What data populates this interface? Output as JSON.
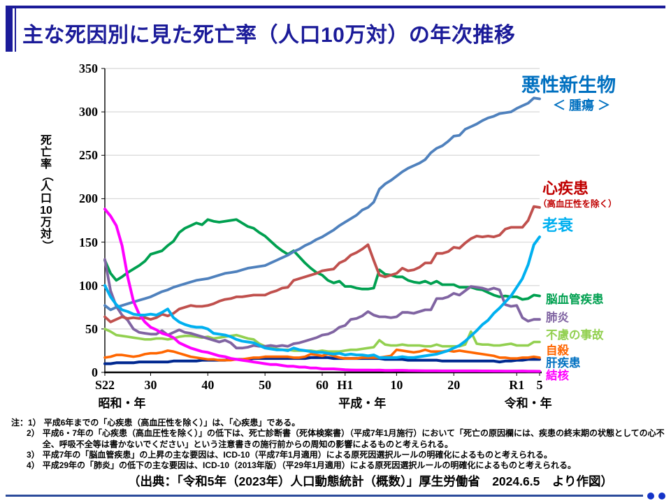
{
  "page": {
    "title": "主な死因別に見た死亡率（人口10万対）の年次推移",
    "source": "（出典：「令和5年（2023年）人口動態統計（概数）」厚生労働省　2024.6.5　より作図）"
  },
  "legend": {
    "cancer": {
      "label": "悪性新生物",
      "sub": "＜ 腫瘍 ＞",
      "color": "#0070C0"
    },
    "heart": {
      "label": "心疾患",
      "sub": "（高血圧性を除く）",
      "color": "#C00000"
    },
    "senility": {
      "label": "老衰",
      "color": "#00B0F0"
    },
    "cerebro": {
      "label": "脳血管疾患",
      "color": "#00A050"
    },
    "pneumonia": {
      "label": "肺炎",
      "color": "#8064A2"
    },
    "accident": {
      "label": "不慮の事故",
      "color": "#92D050"
    },
    "suicide": {
      "label": "自殺",
      "color": "#FF6600"
    },
    "liver": {
      "label": "肝疾患",
      "color": "#0070C0"
    },
    "tb": {
      "label": "結核",
      "color": "#FF00FF"
    }
  },
  "notes": {
    "items": [
      {
        "no": "注：1）",
        "text": "平成6年までの「心疾患（高血圧性を除く）」は、「心疾患」である。"
      },
      {
        "no": "2）",
        "text": "平成6・7年の「心疾患（高血圧性を除く）」の低下は、死亡診断書（死体検案書）（平成7年1月施行）において「死亡の原因欄には、疾患の終末期の状態としての心不全、呼吸不全等は書かないでください」という注意書きの施行前からの周知の影響によるものと考えられる。"
      },
      {
        "no": "3）",
        "text": "平成7年の「脳血管疾患」の上昇の主な要因は、ICD-10（平成7年1月適用）による原死因選択ルールの明確化によるものと考えられる。"
      },
      {
        "no": "4）",
        "text": "平成29年の「肺炎」の低下の主な要因は、ICD-10（2013年版）（平29年1月適用）による原死因選択ルールの明確化によるものと考えられる。"
      }
    ]
  },
  "footer": {
    "accent_color": "#2B4B9B",
    "dot_color": "#1433C8"
  },
  "chart_data": {
    "type": "line",
    "title": "主な死因別に見た死亡率（人口10万対）の年次推移",
    "ylabel": "死亡率（人口10万対）",
    "ylabel_tokens": [
      "死",
      "亡",
      "率",
      "（",
      "人",
      "口",
      "10",
      "万",
      "対",
      "）"
    ],
    "ylim": [
      0,
      350
    ],
    "y_ticks": [
      0,
      50,
      100,
      150,
      200,
      250,
      300,
      350
    ],
    "x_range": [
      1947,
      2023
    ],
    "x_ticks": [
      {
        "label": "S22",
        "year": 1947
      },
      {
        "label": "30",
        "year": 1955
      },
      {
        "label": "40",
        "year": 1965
      },
      {
        "label": "50",
        "year": 1975
      },
      {
        "label": "60",
        "year": 1985
      },
      {
        "label": "H1",
        "year": 1989
      },
      {
        "label": "10",
        "year": 1998
      },
      {
        "label": "20",
        "year": 2008
      },
      {
        "label": "R1",
        "year": 2019
      },
      {
        "label": "5",
        "year": 2023
      }
    ],
    "x_axis_eras": [
      {
        "label": "昭和・年",
        "year": 1950
      },
      {
        "label": "平成・年",
        "year": 1992
      },
      {
        "label": "令和・年",
        "year": 2021
      }
    ],
    "grid": "horizontal",
    "legend_position": "right",
    "series": [
      {
        "name": "悪性新生物＜腫瘍＞",
        "color": "#4F81BD",
        "width": 3.8,
        "values": [
          77,
          72,
          75,
          77,
          79,
          81,
          83,
          85,
          87,
          90,
          93,
          95,
          98,
          100,
          102,
          104,
          106,
          107,
          108,
          110,
          112,
          114,
          115,
          116,
          118,
          120,
          121,
          122,
          123,
          126,
          129,
          132,
          135,
          139,
          142,
          146,
          149,
          153,
          156,
          160,
          164,
          169,
          173,
          177,
          181,
          187,
          190,
          196,
          211,
          217,
          221,
          226,
          231,
          235,
          238,
          241,
          245,
          253,
          258,
          261,
          266,
          272,
          273,
          280,
          283,
          286,
          290,
          293,
          295,
          298,
          299,
          300,
          304,
          307,
          310,
          316,
          315
        ]
      },
      {
        "name": "心疾患（高血圧性を除く）",
        "color": "#C0504D",
        "width": 3.8,
        "values": [
          64,
          58,
          61,
          64,
          62,
          63,
          62,
          63,
          61,
          63,
          67,
          65,
          68,
          73,
          75,
          77,
          76,
          76,
          77,
          79,
          82,
          84,
          85,
          87,
          87,
          88,
          89,
          89,
          89,
          92,
          94,
          97,
          98,
          106,
          108,
          110,
          112,
          114,
          117,
          118,
          119,
          126,
          129,
          135,
          138,
          142,
          147,
          129,
          112,
          110,
          112,
          114,
          120,
          117,
          118,
          121,
          126,
          126,
          137,
          137,
          139,
          144,
          143,
          149,
          154,
          157,
          156,
          157,
          156,
          158,
          165,
          167,
          167,
          167,
          175,
          191,
          190
        ]
      },
      {
        "name": "老衰",
        "color": "#00B0F0",
        "width": 4,
        "values": [
          100,
          87,
          78,
          72,
          70,
          67,
          66,
          66,
          67,
          66,
          69,
          73,
          63,
          58,
          55,
          53,
          52,
          52,
          50,
          45,
          44,
          43,
          41,
          38,
          36,
          35,
          34,
          31,
          28,
          27,
          26,
          26,
          25,
          28,
          26,
          25,
          24,
          23,
          23,
          22,
          21,
          22,
          20,
          21,
          20,
          20,
          19,
          20,
          17,
          17,
          17,
          17,
          18,
          17,
          17,
          18,
          19,
          20,
          21,
          23,
          25,
          28,
          31,
          36,
          42,
          48,
          55,
          60,
          68,
          74,
          81,
          88,
          98,
          108,
          124,
          147,
          156
        ]
      },
      {
        "name": "脳血管疾患",
        "color": "#00A050",
        "width": 3.8,
        "values": [
          129,
          114,
          106,
          110,
          115,
          119,
          123,
          128,
          136,
          138,
          140,
          146,
          151,
          161,
          166,
          169,
          172,
          170,
          176,
          174,
          173,
          174,
          175,
          176,
          172,
          168,
          166,
          161,
          157,
          151,
          145,
          140,
          136,
          140,
          133,
          126,
          120,
          115,
          112,
          106,
          103,
          105,
          99,
          99,
          97,
          96,
          96,
          97,
          118,
          113,
          112,
          110,
          110,
          106,
          104,
          103,
          105,
          102,
          105,
          101,
          101,
          101,
          98,
          98,
          98,
          96,
          95,
          92,
          89,
          87,
          88,
          87,
          87,
          84,
          85,
          89,
          88
        ]
      },
      {
        "name": "肺炎",
        "color": "#8064A2",
        "width": 3.8,
        "values": [
          130,
          94,
          76,
          66,
          60,
          50,
          46,
          45,
          44,
          44,
          48,
          43,
          46,
          49,
          46,
          45,
          43,
          41,
          39,
          37,
          35,
          37,
          34,
          28,
          28,
          29,
          31,
          30,
          30,
          31,
          30,
          31,
          30,
          33,
          34,
          36,
          38,
          40,
          43,
          44,
          47,
          52,
          54,
          61,
          62,
          65,
          70,
          66,
          64,
          64,
          63,
          64,
          69,
          69,
          68,
          70,
          72,
          72,
          85,
          85,
          87,
          91,
          89,
          94,
          99,
          98,
          97,
          95,
          97,
          95,
          78,
          76,
          77,
          63,
          59,
          61,
          61
        ]
      },
      {
        "name": "不慮の事故",
        "color": "#92D050",
        "width": 3.6,
        "values": [
          50,
          47,
          43,
          42,
          41,
          40,
          39,
          38,
          38,
          39,
          39,
          38,
          39,
          41,
          42,
          42,
          41,
          40,
          41,
          39,
          40,
          41,
          42,
          43,
          41,
          39,
          38,
          33,
          30,
          28,
          27,
          26,
          26,
          25,
          25,
          25,
          25,
          24,
          25,
          24,
          24,
          24,
          25,
          26,
          26,
          27,
          28,
          29,
          37,
          32,
          31,
          31,
          32,
          31,
          31,
          31,
          30,
          30,
          32,
          30,
          30,
          30,
          30,
          32,
          47,
          33,
          32,
          32,
          31,
          31,
          32,
          33,
          31,
          31,
          31,
          35,
          35
        ]
      },
      {
        "name": "自殺",
        "color": "#FF6600",
        "width": 3.6,
        "values": [
          17,
          18,
          20,
          20,
          19,
          18,
          19,
          21,
          22,
          22,
          23,
          25,
          24,
          22,
          20,
          18,
          17,
          16,
          15,
          15,
          14,
          14,
          14,
          15,
          15,
          16,
          17,
          17,
          18,
          18,
          18,
          18,
          18,
          17,
          17,
          18,
          21,
          20,
          19,
          21,
          19,
          17,
          16,
          16,
          16,
          17,
          17,
          17,
          17,
          18,
          19,
          26,
          25,
          24,
          23,
          24,
          26,
          24,
          24,
          24,
          25,
          24,
          25,
          24,
          23,
          22,
          21,
          20,
          19,
          17,
          17,
          16,
          16,
          17,
          17,
          18,
          17
        ]
      },
      {
        "name": "肝疾患",
        "color": "#002890",
        "width": 4,
        "values": [
          10,
          10,
          11,
          11,
          11,
          11,
          12,
          12,
          12,
          12,
          12,
          12,
          13,
          13,
          13,
          13,
          13,
          14,
          14,
          14,
          14,
          14,
          15,
          15,
          15,
          15,
          16,
          16,
          16,
          16,
          16,
          16,
          16,
          16,
          16,
          16,
          17,
          17,
          17,
          17,
          16,
          16,
          16,
          16,
          16,
          16,
          16,
          16,
          16,
          15,
          15,
          15,
          15,
          14,
          14,
          14,
          14,
          14,
          14,
          13,
          13,
          13,
          13,
          13,
          13,
          13,
          13,
          13,
          13,
          12,
          13,
          13,
          14,
          14,
          15,
          15,
          15
        ]
      },
      {
        "name": "結核",
        "color": "#FF00FF",
        "width": 4,
        "values": [
          188,
          180,
          169,
          146,
          110,
          82,
          67,
          58,
          52,
          49,
          45,
          43,
          40,
          34,
          31,
          28,
          26,
          24,
          23,
          21,
          19,
          18,
          16,
          15,
          14,
          13,
          12,
          11,
          10,
          9,
          9,
          8,
          7,
          7,
          6,
          6,
          5,
          5,
          4,
          4,
          4,
          3.5,
          3,
          2.7,
          2.6,
          2.6,
          2.6,
          2.5,
          2.6,
          2.2,
          2.2,
          2.3,
          2.3,
          2.1,
          2,
          1.9,
          1.8,
          1.8,
          1.8,
          1.7,
          1.7,
          1.7,
          1.7,
          1.7,
          1.7,
          1.7,
          1.6,
          1.6,
          1.5,
          1.5,
          1.4,
          1.4,
          1.4,
          1.5,
          1.3,
          1.3,
          1.2
        ]
      }
    ]
  }
}
